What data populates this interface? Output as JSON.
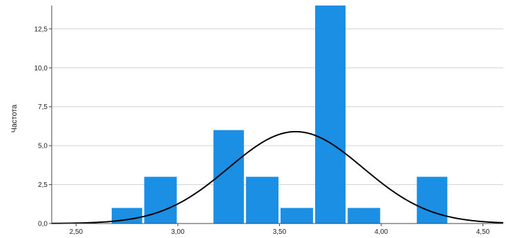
{
  "chart_data": {
    "type": "bar",
    "subtype": "histogram",
    "ylabel": "Частота",
    "xlabel": "",
    "xlim": [
      2.38,
      4.6
    ],
    "ylim": [
      0,
      14
    ],
    "x_ticks": [
      {
        "value": 2.5,
        "label": "2,50"
      },
      {
        "value": 3.0,
        "label": "3,00"
      },
      {
        "value": 3.5,
        "label": "3,50"
      },
      {
        "value": 4.0,
        "label": "4,00"
      },
      {
        "value": 4.5,
        "label": "4,50"
      }
    ],
    "y_ticks": [
      {
        "value": 0,
        "label": "0,0"
      },
      {
        "value": 2.5,
        "label": "2,5"
      },
      {
        "value": 5,
        "label": "5,0"
      },
      {
        "value": 7.5,
        "label": "7,5"
      },
      {
        "value": 10,
        "label": "10,0"
      },
      {
        "value": 12.5,
        "label": "12,5"
      }
    ],
    "grid": "horizontal",
    "bar_color": "#1a8fe3",
    "bins": [
      {
        "x0": 2.67,
        "x1": 2.83,
        "count": 1
      },
      {
        "x0": 2.83,
        "x1": 3.0,
        "count": 3
      },
      {
        "x0": 3.17,
        "x1": 3.33,
        "count": 6
      },
      {
        "x0": 3.33,
        "x1": 3.5,
        "count": 3
      },
      {
        "x0": 3.5,
        "x1": 3.67,
        "count": 1
      },
      {
        "x0": 3.67,
        "x1": 3.83,
        "count": 14
      },
      {
        "x0": 3.83,
        "x1": 4.0,
        "count": 1
      },
      {
        "x0": 4.17,
        "x1": 4.33,
        "count": 3
      }
    ],
    "normal_curve": {
      "mean": 3.58,
      "sd": 0.33,
      "peak": 5.9,
      "color": "#000000"
    }
  }
}
